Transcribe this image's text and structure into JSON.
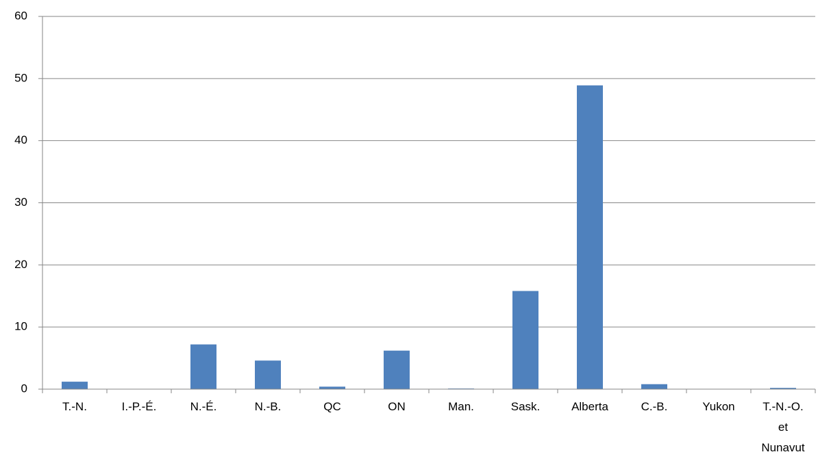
{
  "chart_data": {
    "type": "bar",
    "categories": [
      "T.-N.",
      "I.-P.-É.",
      "N.-É.",
      "N.-B.",
      "QC",
      "ON",
      "Man.",
      "Sask.",
      "Alberta",
      "C.-B.",
      "Yukon",
      "T.-N.-O. et Nunavut"
    ],
    "values": [
      1.2,
      0,
      7.2,
      4.6,
      0.4,
      6.2,
      0.1,
      15.8,
      48.9,
      0.8,
      0,
      0.2
    ],
    "color": "#4f81bd",
    "ylim": [
      0,
      60
    ],
    "yticks": [
      0,
      10,
      20,
      30,
      40,
      50,
      60
    ],
    "grid": true
  }
}
